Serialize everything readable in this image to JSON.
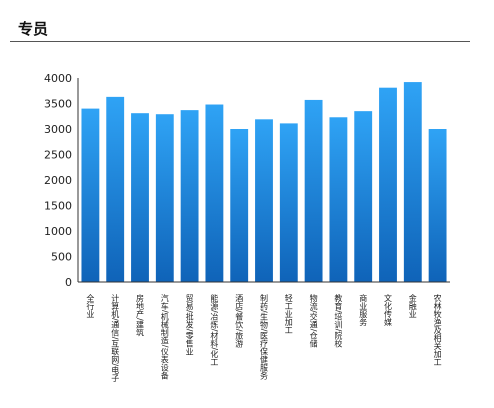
{
  "header": {
    "title": "专员"
  },
  "chart_data": {
    "type": "bar",
    "categories": [
      "全行业",
      "计算机/通信/互联网/电子",
      "房地产/建筑",
      "汽车/机械制造/仪表设备",
      "贸易/批发/零售业",
      "能源/冶炼/材料/化工",
      "酒店/餐饮/旅游",
      "制药/生物/医疗保健服务",
      "轻工业加工",
      "物流/交通/仓储",
      "教育/培训/院校",
      "商业服务",
      "文化传媒",
      "金融业",
      "农林牧渔及相关加工"
    ],
    "values": [
      3400,
      3630,
      3310,
      3290,
      3370,
      3480,
      3000,
      3190,
      3110,
      3570,
      3230,
      3350,
      3810,
      3920,
      3000
    ],
    "yticks": [
      "0",
      "500",
      "1000",
      "1500",
      "2000",
      "2500",
      "3000",
      "3500",
      "4000"
    ],
    "ylim": [
      0,
      4000
    ],
    "grid": false,
    "colors": {
      "bar_top": "#2fa3f5",
      "bar_bottom": "#0f63b8"
    }
  }
}
